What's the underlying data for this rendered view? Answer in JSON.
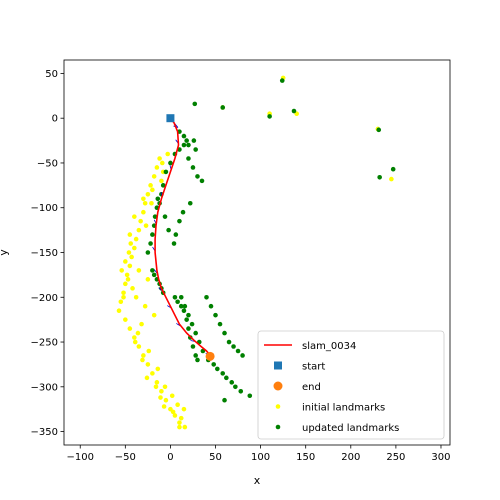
{
  "chart_data": {
    "type": "scatter",
    "title": "",
    "xlabel": "x",
    "ylabel": "y",
    "xlim": [
      -118,
      310
    ],
    "ylim": [
      -365,
      65
    ],
    "xticks": [
      -100,
      -50,
      0,
      50,
      100,
      150,
      200,
      250,
      300
    ],
    "yticks": [
      50,
      0,
      -50,
      -100,
      -150,
      -200,
      -250,
      -300,
      -350
    ],
    "grid": false,
    "legend_position": "lower-right",
    "colors": {
      "trajectory": "#ff0000",
      "start": "#1f77b4",
      "end": "#ff7f0e",
      "initial_landmarks": "#ffff00",
      "updated_landmarks": "#008000",
      "arrows": "#0000cc"
    },
    "series": [
      {
        "name": "slam_0034",
        "kind": "line",
        "x": [
          0,
          4,
          8,
          9,
          5,
          0,
          -5,
          -10,
          -14,
          -16,
          -17,
          -17,
          -16,
          -15,
          -13,
          -10,
          -5,
          0,
          5,
          10,
          18,
          26,
          34,
          40,
          45
        ],
        "y": [
          0,
          -5,
          -15,
          -30,
          -45,
          -60,
          -75,
          -90,
          -105,
          -120,
          -135,
          -150,
          -160,
          -170,
          -180,
          -190,
          -200,
          -210,
          -220,
          -230,
          -240,
          -248,
          -255,
          -260,
          -266
        ]
      },
      {
        "name": "start",
        "kind": "marker",
        "marker": "square",
        "x": [
          0
        ],
        "y": [
          0
        ]
      },
      {
        "name": "end",
        "kind": "marker",
        "marker": "circle",
        "x": [
          44
        ],
        "y": [
          -266
        ]
      },
      {
        "name": "initial landmarks",
        "kind": "points",
        "x": [
          -12,
          -15,
          -18,
          -22,
          -25,
          -28,
          -30,
          -33,
          -35,
          -38,
          -40,
          -43,
          -45,
          -48,
          -50,
          -52,
          -55,
          -57,
          -50,
          -45,
          -40,
          -35,
          -30,
          -25,
          -20,
          -15,
          -10,
          -5,
          0,
          5,
          10,
          15,
          -8,
          -10,
          -20,
          -30,
          -40,
          -45,
          -50,
          -35,
          -25,
          -42,
          -38,
          -28,
          -18,
          -32,
          -46,
          -54,
          -47,
          -36,
          -24,
          -14,
          -6,
          2,
          8,
          12,
          16,
          -9,
          -3,
          -21,
          -27,
          -44,
          -52,
          -39,
          -31,
          -26,
          -16,
          -11,
          -7,
          3,
          10,
          125,
          140,
          110,
          230,
          245,
          58
        ],
        "y": [
          -45,
          -55,
          -65,
          -75,
          -85,
          -95,
          -105,
          -115,
          -125,
          -135,
          -145,
          -155,
          -165,
          -175,
          -185,
          -195,
          -205,
          -215,
          -225,
          -235,
          -245,
          -255,
          -265,
          -275,
          -285,
          -295,
          -305,
          -315,
          -325,
          -332,
          -340,
          -325,
          -60,
          -70,
          -80,
          -90,
          -110,
          -130,
          -160,
          -170,
          -180,
          -190,
          -200,
          -210,
          -220,
          -230,
          -150,
          -170,
          -180,
          -240,
          -260,
          -280,
          -300,
          -310,
          -320,
          -335,
          -345,
          -50,
          -40,
          -95,
          -120,
          -140,
          -200,
          -250,
          -270,
          -290,
          -300,
          -312,
          -322,
          -328,
          -345,
          45,
          5,
          5,
          -12,
          -68,
          12
        ]
      },
      {
        "name": "updated landmarks",
        "kind": "points",
        "x": [
          -25,
          -22,
          -20,
          -18,
          -17,
          -15,
          -14,
          -12,
          -10,
          -8,
          -5,
          0,
          5,
          10,
          15,
          20,
          25,
          30,
          35,
          40,
          45,
          50,
          55,
          60,
          65,
          70,
          75,
          80,
          5,
          8,
          12,
          15,
          18,
          20,
          22,
          25,
          28,
          30,
          10,
          15,
          18,
          20,
          -20,
          -18,
          -15,
          -12,
          -10,
          -8,
          12,
          16,
          20,
          24,
          28,
          32,
          36,
          42,
          48,
          52,
          58,
          62,
          68,
          72,
          78,
          88,
          60,
          26,
          28,
          22,
          14,
          10,
          6,
          4,
          -2,
          -6,
          124,
          110,
          137,
          231,
          232,
          247,
          58,
          27
        ],
        "y": [
          -150,
          -140,
          -130,
          -120,
          -110,
          -100,
          -90,
          -95,
          -85,
          -75,
          -60,
          -50,
          -40,
          -35,
          -30,
          -45,
          -55,
          -65,
          -70,
          -200,
          -210,
          -220,
          -230,
          -240,
          -250,
          -255,
          -260,
          -265,
          -200,
          -205,
          -210,
          -215,
          -225,
          -235,
          -245,
          -255,
          -265,
          -270,
          -15,
          -20,
          -25,
          -30,
          -170,
          -175,
          -180,
          -185,
          -190,
          -195,
          -200,
          -210,
          -220,
          -230,
          -240,
          -250,
          -260,
          -270,
          -275,
          -280,
          -285,
          -290,
          -295,
          -300,
          -305,
          -310,
          -315,
          -25,
          -35,
          -95,
          -105,
          -115,
          -130,
          -140,
          -125,
          -110,
          42,
          2,
          8,
          -13,
          -66,
          -57,
          12,
          16
        ]
      }
    ]
  }
}
